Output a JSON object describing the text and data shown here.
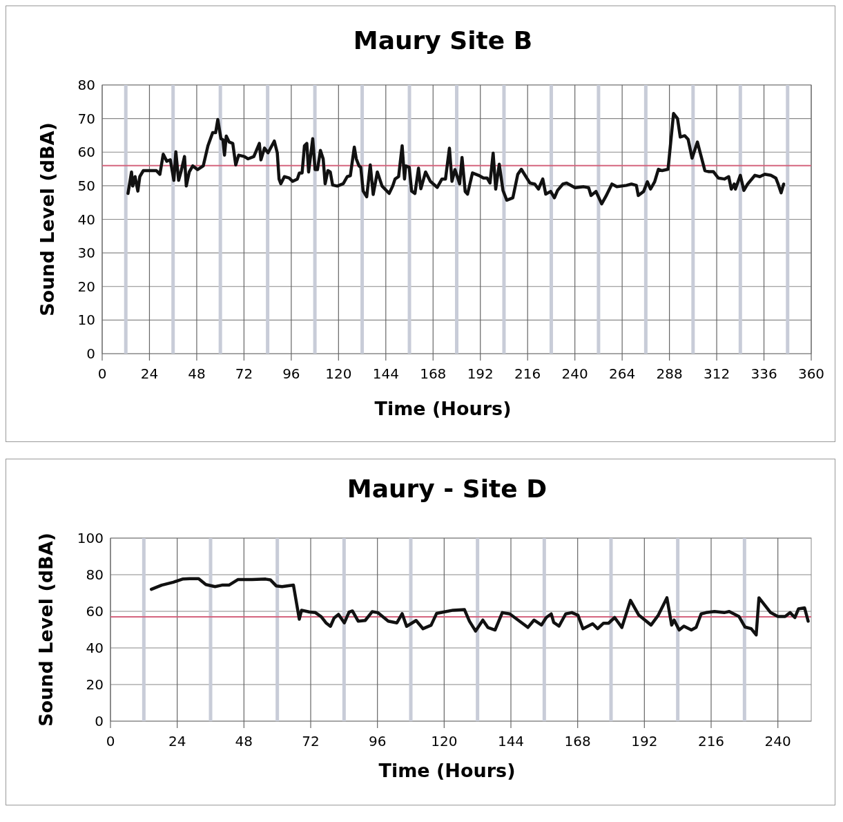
{
  "chart_data": [
    {
      "type": "line",
      "title": "Maury Site B",
      "xlabel": "Time (Hours)",
      "ylabel": "Sound Level (dBA)",
      "xlim": [
        0,
        360
      ],
      "xticks": [
        0,
        24,
        48,
        72,
        96,
        120,
        144,
        168,
        192,
        216,
        240,
        264,
        288,
        312,
        336,
        360
      ],
      "ylim": [
        0,
        80
      ],
      "yticks": [
        0,
        10,
        20,
        30,
        40,
        50,
        60,
        70,
        80
      ],
      "grid": true,
      "marker": "none",
      "line_style": "solid",
      "ref_lines": [
        {
          "axis": "y",
          "value": 56,
          "color": "#d4647e"
        },
        {
          "axis": "x",
          "value": 12,
          "color": "#c8ccd8"
        },
        {
          "axis": "x",
          "value": 36,
          "color": "#c8ccd8"
        },
        {
          "axis": "x",
          "value": 60,
          "color": "#c8ccd8"
        },
        {
          "axis": "x",
          "value": 84,
          "color": "#c8ccd8"
        },
        {
          "axis": "x",
          "value": 108,
          "color": "#c8ccd8"
        },
        {
          "axis": "x",
          "value": 132,
          "color": "#c8ccd8"
        },
        {
          "axis": "x",
          "value": 156,
          "color": "#c8ccd8"
        },
        {
          "axis": "x",
          "value": 180,
          "color": "#c8ccd8"
        },
        {
          "axis": "x",
          "value": 204,
          "color": "#c8ccd8"
        },
        {
          "axis": "x",
          "value": 228,
          "color": "#c8ccd8"
        },
        {
          "axis": "x",
          "value": 252,
          "color": "#c8ccd8"
        },
        {
          "axis": "x",
          "value": 276,
          "color": "#c8ccd8"
        },
        {
          "axis": "x",
          "value": 300,
          "color": "#c8ccd8"
        },
        {
          "axis": "x",
          "value": 324,
          "color": "#c8ccd8"
        },
        {
          "axis": "x",
          "value": 348,
          "color": "#c8ccd8"
        }
      ],
      "series": [
        {
          "color": "#111111",
          "x": [
            13.1,
            14.9,
            15.5,
            16.7,
            18.1,
            19.1,
            20.9,
            22.7,
            27.5,
            29.3,
            31.0,
            32.8,
            34.6,
            36.4,
            37.4,
            38.8,
            40.0,
            41.8,
            42.7,
            44.2,
            46.0,
            48.4,
            51.3,
            53.7,
            56.1,
            57.6,
            58.7,
            60.3,
            61.3,
            62.1,
            63.0,
            64.5,
            66.3,
            67.8,
            69.3,
            72.2,
            74.0,
            77.0,
            79.8,
            80.6,
            82.4,
            84.2,
            87.4,
            88.9,
            89.8,
            90.7,
            92.5,
            94.9,
            96.7,
            99.1,
            100.1,
            101.5,
            102.7,
            103.9,
            104.8,
            106.9,
            108.1,
            109.3,
            110.8,
            112.2,
            113.2,
            114.6,
            115.8,
            117.0,
            119.4,
            122.4,
            124.4,
            126.0,
            128.0,
            129.0,
            130.4,
            131.3,
            132.5,
            134.3,
            136.1,
            137.6,
            139.7,
            142.1,
            145.7,
            147.5,
            148.7,
            150.5,
            152.3,
            153.5,
            154.1,
            155.9,
            157.1,
            158.8,
            160.6,
            161.8,
            164.2,
            166.6,
            170.1,
            172.5,
            174.3,
            176.3,
            177.6,
            179.1,
            181.5,
            182.7,
            184.3,
            185.5,
            188.0,
            191.1,
            193.6,
            195.4,
            196.9,
            198.5,
            199.8,
            201.6,
            203.5,
            205.4,
            208.5,
            211.0,
            212.8,
            214.7,
            217.2,
            219.6,
            221.5,
            223.7,
            225.2,
            227.7,
            229.6,
            231.2,
            233.9,
            235.8,
            240.1,
            244.5,
            247.0,
            248.2,
            250.7,
            253.6,
            255.7,
            258.8,
            261.3,
            266.2,
            268.7,
            271.2,
            272.2,
            274.9,
            276.8,
            278.4,
            280.5,
            282.4,
            284.2,
            287.3,
            290.1,
            292.1,
            293.5,
            295.8,
            297.5,
            299.5,
            302.2,
            306.0,
            307.8,
            310.3,
            312.8,
            315.9,
            318.1,
            319.4,
            320.9,
            321.5,
            324.0,
            325.8,
            327.7,
            331.4,
            333.9,
            336.4,
            339.5,
            342.0,
            343.2,
            344.7,
            346.0
          ],
          "values": [
            47.7,
            54.1,
            49.9,
            52.7,
            48.4,
            52.7,
            54.5,
            54.5,
            54.5,
            53.4,
            59.4,
            57.3,
            57.7,
            51.6,
            60.1,
            51.6,
            54.1,
            58.7,
            49.9,
            54.1,
            55.9,
            54.8,
            55.9,
            61.9,
            65.8,
            65.8,
            69.7,
            64.0,
            63.7,
            59.1,
            64.8,
            63.0,
            62.6,
            56.2,
            59.1,
            58.7,
            58.0,
            58.7,
            62.6,
            57.7,
            61.2,
            59.8,
            63.3,
            59.8,
            52.0,
            50.6,
            52.7,
            52.3,
            51.3,
            52.0,
            53.8,
            53.8,
            61.9,
            62.6,
            54.1,
            64.0,
            54.8,
            54.8,
            60.5,
            58.0,
            50.6,
            54.5,
            54.1,
            50.2,
            49.9,
            50.6,
            52.7,
            53.0,
            61.5,
            58.0,
            55.9,
            55.5,
            48.4,
            46.7,
            56.2,
            47.4,
            54.1,
            49.9,
            47.7,
            49.9,
            52.0,
            52.7,
            61.9,
            52.0,
            55.9,
            55.5,
            48.4,
            47.7,
            55.2,
            49.1,
            54.1,
            51.3,
            49.5,
            52.0,
            52.0,
            61.2,
            51.3,
            54.8,
            50.6,
            58.4,
            48.3,
            47.5,
            53.8,
            53.1,
            52.3,
            52.3,
            50.8,
            59.7,
            49.0,
            56.4,
            48.6,
            45.7,
            46.4,
            53.4,
            54.9,
            53.1,
            50.8,
            50.5,
            49.0,
            52.0,
            47.5,
            48.3,
            46.4,
            48.6,
            50.5,
            50.8,
            49.4,
            49.7,
            49.4,
            47.1,
            48.3,
            44.6,
            46.8,
            50.5,
            49.7,
            50.1,
            50.5,
            50.1,
            47.1,
            48.3,
            51.2,
            49.0,
            51.2,
            54.9,
            54.5,
            54.9,
            71.5,
            70.0,
            64.5,
            64.9,
            63.8,
            58.2,
            63.0,
            54.5,
            54.2,
            54.2,
            52.3,
            52.0,
            52.7,
            49.0,
            50.5,
            49.0,
            53.1,
            48.6,
            50.5,
            53.1,
            52.7,
            53.4,
            53.1,
            52.3,
            50.5,
            47.9,
            50.5
          ]
        }
      ]
    },
    {
      "type": "line",
      "title": "Maury - Site D",
      "xlabel": "Time (Hours)",
      "ylabel": "Sound Level (dBA)",
      "xlim": [
        0,
        252
      ],
      "xticks": [
        0,
        24,
        48,
        72,
        96,
        120,
        144,
        168,
        192,
        216,
        240
      ],
      "ylim": [
        0,
        100
      ],
      "yticks": [
        0,
        20,
        40,
        60,
        80,
        100
      ],
      "grid": true,
      "marker": "none",
      "line_style": "solid",
      "ref_lines": [
        {
          "axis": "y",
          "value": 57,
          "color": "#d4647e"
        },
        {
          "axis": "x",
          "value": 12,
          "color": "#c8ccd8"
        },
        {
          "axis": "x",
          "value": 36,
          "color": "#c8ccd8"
        },
        {
          "axis": "x",
          "value": 60,
          "color": "#c8ccd8"
        },
        {
          "axis": "x",
          "value": 84,
          "color": "#c8ccd8"
        },
        {
          "axis": "x",
          "value": 108,
          "color": "#c8ccd8"
        },
        {
          "axis": "x",
          "value": 132,
          "color": "#c8ccd8"
        },
        {
          "axis": "x",
          "value": 156,
          "color": "#c8ccd8"
        },
        {
          "axis": "x",
          "value": 180,
          "color": "#c8ccd8"
        },
        {
          "axis": "x",
          "value": 204,
          "color": "#c8ccd8"
        },
        {
          "axis": "x",
          "value": 228,
          "color": "#c8ccd8"
        }
      ],
      "series": [
        {
          "color": "#111111",
          "x": [
            14.7,
            18.4,
            22.6,
            25.9,
            28.4,
            31.7,
            34.3,
            37.6,
            40.1,
            42.6,
            45.9,
            50.9,
            55.8,
            57.5,
            59.6,
            61.7,
            65.8,
            67.9,
            68.7,
            71.6,
            73.7,
            75.8,
            77.5,
            79.1,
            80.4,
            82.0,
            84.1,
            85.8,
            87.0,
            89.1,
            91.6,
            94.1,
            96.1,
            99.9,
            103.0,
            104.9,
            106.5,
            109.9,
            112.4,
            115.3,
            117.3,
            119.8,
            123.2,
            127.3,
            129.1,
            131.3,
            133.9,
            135.7,
            138.3,
            140.9,
            143.6,
            147.1,
            150.1,
            152.3,
            155.0,
            156.7,
            158.5,
            159.4,
            161.3,
            163.7,
            165.9,
            168.1,
            169.9,
            173.4,
            175.2,
            177.3,
            179.1,
            181.3,
            183.9,
            187.0,
            190.0,
            194.4,
            197.0,
            200.1,
            201.8,
            202.7,
            204.5,
            206.2,
            208.9,
            210.6,
            212.4,
            214.2,
            217.2,
            220.7,
            222.5,
            226.0,
            228.2,
            230.4,
            232.2,
            233.2,
            237.4,
            240.0,
            242.6,
            244.4,
            246.1,
            247.4,
            249.6,
            250.9
          ],
          "values": [
            72.0,
            74.3,
            75.9,
            77.6,
            77.8,
            77.8,
            74.6,
            73.5,
            74.3,
            74.3,
            77.4,
            77.4,
            77.6,
            77.2,
            73.9,
            73.5,
            74.3,
            55.7,
            60.6,
            59.6,
            59.3,
            57.0,
            53.7,
            51.8,
            56.3,
            58.3,
            53.7,
            59.6,
            60.2,
            54.6,
            55.0,
            59.8,
            59.3,
            54.6,
            53.7,
            58.7,
            51.8,
            55.0,
            50.5,
            52.4,
            58.9,
            59.6,
            60.6,
            60.9,
            54.6,
            49.2,
            55.2,
            51.2,
            49.8,
            59.3,
            58.6,
            54.6,
            51.2,
            55.2,
            52.5,
            56.6,
            58.6,
            53.9,
            51.9,
            58.6,
            59.3,
            57.9,
            50.5,
            53.2,
            50.5,
            53.5,
            53.5,
            56.6,
            51.2,
            66.0,
            57.9,
            52.5,
            57.9,
            67.4,
            52.5,
            55.2,
            49.8,
            51.9,
            49.8,
            51.2,
            58.6,
            59.3,
            59.9,
            59.3,
            59.9,
            57.2,
            51.4,
            50.5,
            47.1,
            67.4,
            59.3,
            57.2,
            57.2,
            59.3,
            56.6,
            61.3,
            61.9,
            54.6
          ]
        }
      ]
    }
  ]
}
